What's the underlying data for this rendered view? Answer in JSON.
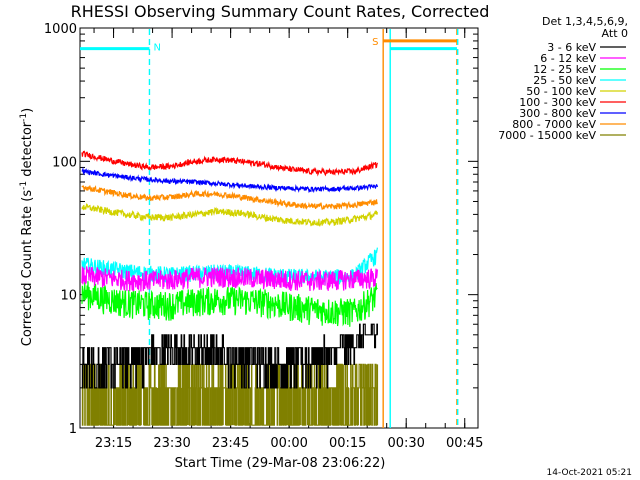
{
  "chart_data": {
    "type": "line",
    "title": "RHESSI Observing Summary Count Rates, Corrected",
    "xlabel": "Start Time (29-Mar-08 23:06:22)",
    "ylabel_main": "Corrected Count Rate (s",
    "ylabel_sup1": "-1",
    "ylabel_mid": " detector",
    "ylabel_sup2": "-1",
    "ylabel_end": ")",
    "y_scale": "log",
    "ylim": [
      1,
      1000
    ],
    "xlim_minutes": [
      0,
      102
    ],
    "x_ticks": [
      {
        "label": "23:15",
        "minutes": 8.6
      },
      {
        "label": "23:30",
        "minutes": 23.6
      },
      {
        "label": "23:45",
        "minutes": 38.6
      },
      {
        "label": "00:00",
        "minutes": 53.6
      },
      {
        "label": "00:15",
        "minutes": 68.6
      },
      {
        "label": "00:30",
        "minutes": 83.6
      },
      {
        "label": "00:45",
        "minutes": 98.6
      }
    ],
    "y_ticks": [
      {
        "label": "1",
        "value": 1
      },
      {
        "label": "10",
        "value": 10
      },
      {
        "label": "100",
        "value": 100
      },
      {
        "label": "1000",
        "value": 1000
      }
    ],
    "legend_header": [
      "Det 1,3,4,5,6,9,",
      "Att 0"
    ],
    "legend_position": "right",
    "data_end_minute": 76.3,
    "series": [
      {
        "name": "3 - 6 keV",
        "color": "#000000",
        "values": [
          2.8,
          3.0,
          3.3,
          3.6,
          3.8,
          3.8,
          3.6,
          3.4,
          3.2,
          3.1,
          3.3,
          3.6,
          4.4,
          5.5
        ]
      },
      {
        "name": "6 - 12 keV",
        "color": "#ff00ff",
        "values": [
          14.0,
          13.5,
          13.0,
          12.8,
          13.0,
          13.6,
          13.8,
          13.5,
          13.2,
          13.0,
          12.8,
          12.9,
          13.2,
          13.5
        ]
      },
      {
        "name": "12 - 25 keV",
        "color": "#00ff00",
        "values": [
          10.5,
          9.5,
          8.8,
          8.5,
          8.5,
          9.0,
          9.3,
          9.2,
          8.9,
          8.4,
          7.9,
          7.6,
          7.5,
          10.0
        ]
      },
      {
        "name": "25 - 50 keV",
        "color": "#00ffff",
        "values": [
          17.0,
          16.0,
          15.0,
          14.5,
          14.2,
          14.5,
          14.8,
          14.6,
          14.2,
          13.8,
          13.6,
          13.6,
          13.8,
          20.0
        ]
      },
      {
        "name": "50 - 100 keV",
        "color": "#d2d200",
        "values": [
          46.0,
          43.0,
          40.0,
          38.0,
          38.0,
          40.0,
          42.0,
          41.0,
          38.0,
          36.0,
          35.0,
          35.0,
          37.0,
          40.0
        ]
      },
      {
        "name": "100 - 300 keV",
        "color": "#ff0000",
        "values": [
          115.0,
          105.0,
          96.0,
          90.0,
          92.0,
          100.0,
          104.0,
          100.0,
          95.0,
          88.0,
          84.0,
          83.0,
          84.0,
          95.0
        ]
      },
      {
        "name": "300 - 800 keV",
        "color": "#0000ff",
        "values": [
          85.0,
          80.0,
          76.0,
          73.0,
          71.0,
          70.0,
          68.0,
          66.0,
          64.0,
          63.0,
          62.0,
          62.0,
          63.0,
          65.0
        ]
      },
      {
        "name": "800 - 7000 keV",
        "color": "#ff8c00",
        "values": [
          65.0,
          60.0,
          56.0,
          53.0,
          54.0,
          57.0,
          57.0,
          54.0,
          51.0,
          48.0,
          46.0,
          46.0,
          47.0,
          50.0
        ]
      },
      {
        "name": "7000 - 15000 keV",
        "color": "#808000",
        "values": [
          2.2,
          1.8,
          2.2,
          1.8,
          2.2,
          1.8,
          2.2,
          1.8,
          2.2,
          1.8,
          2.2,
          1.8,
          2.2,
          2.6
        ]
      }
    ],
    "flags": [
      {
        "label": "N",
        "color": "#00ffff",
        "level": 700,
        "start": 0,
        "end": 17.8
      },
      {
        "label": "N",
        "color": "#00ffff",
        "level": 700,
        "start": 79.5,
        "end": 96.6
      },
      {
        "label": "S",
        "color": "#ff8c00",
        "level": 800,
        "start": 77.7,
        "end": 96.6
      }
    ],
    "vertical_markers": [
      {
        "minute": 17.8,
        "color": "#00ffff",
        "style": "dashed"
      },
      {
        "minute": 77.7,
        "color": "#ff8c00",
        "style": "solid"
      },
      {
        "minute": 79.5,
        "color": "#00ffff",
        "style": "solid"
      },
      {
        "minute": 96.6,
        "color": "#ff8c00",
        "style": "dashed"
      },
      {
        "minute": 96.8,
        "color": "#00ffff",
        "style": "dashed"
      }
    ]
  },
  "footer": "14-Oct-2021 05:21"
}
